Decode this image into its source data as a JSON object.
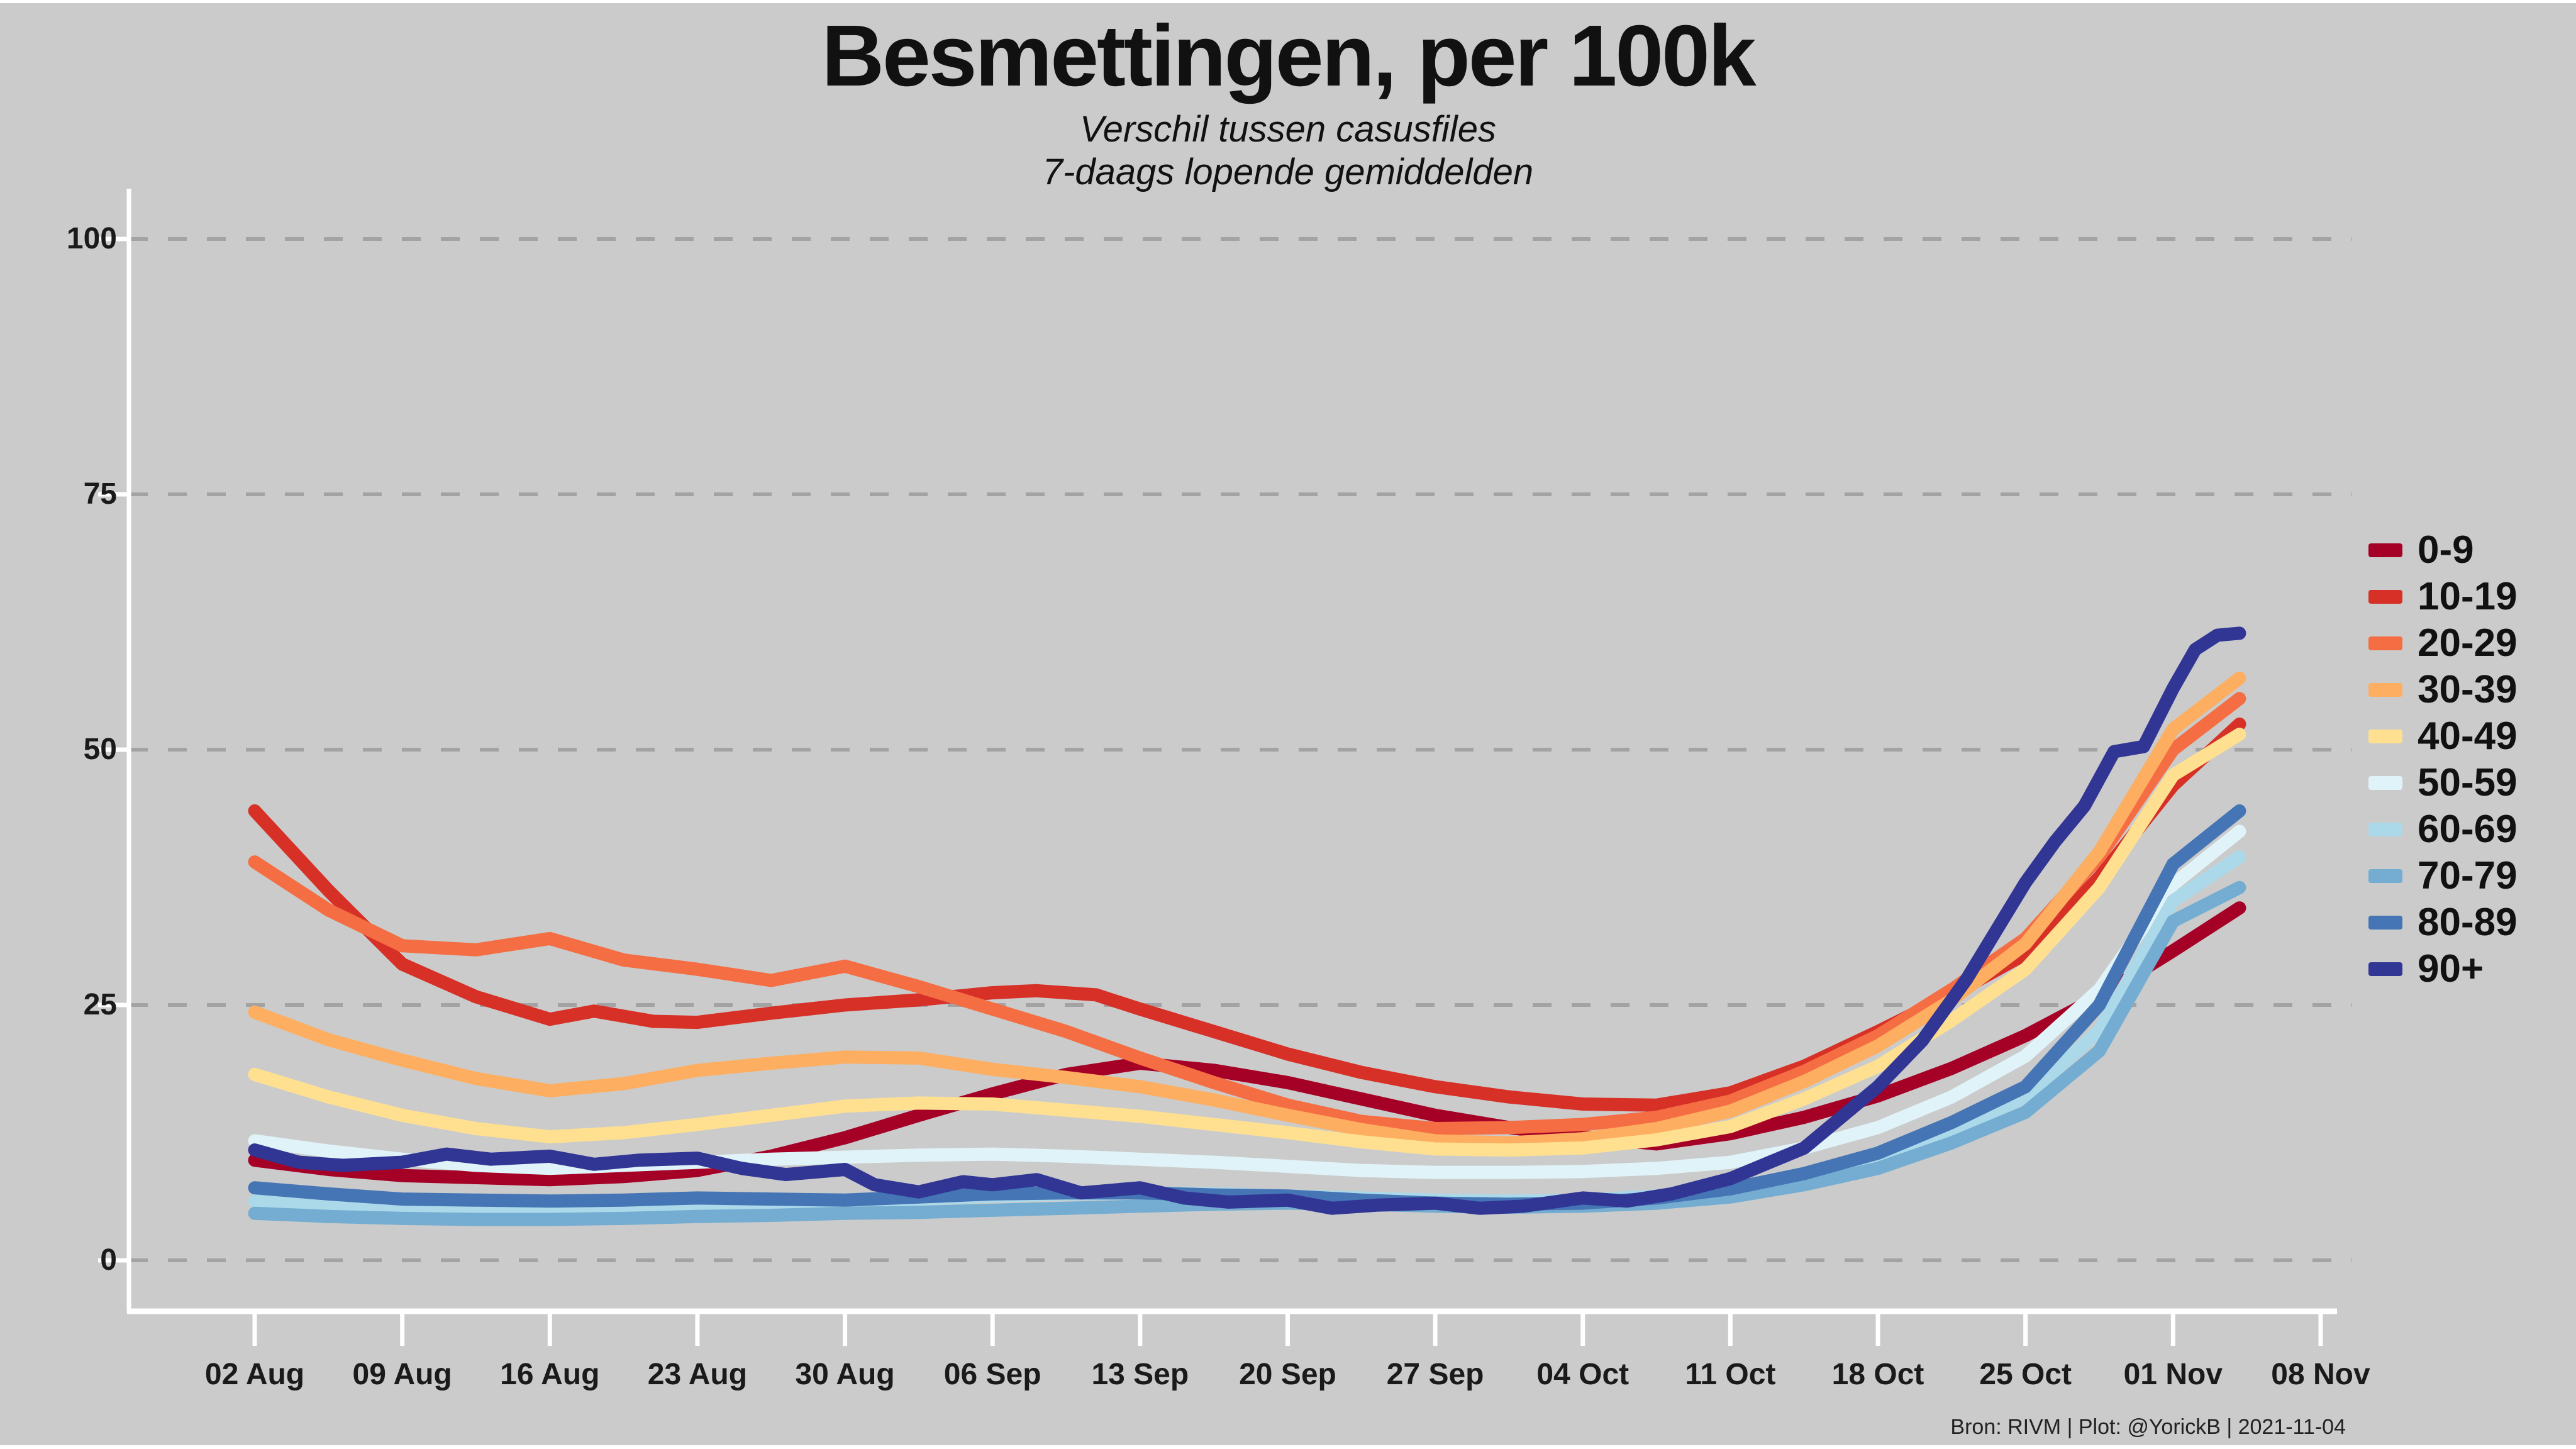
{
  "header": {
    "title": "Besmettingen, per 100k",
    "subtitle1": "Verschil tussen casusfiles",
    "subtitle2": "7-daags lopende gemiddelden"
  },
  "footer": {
    "attribution": "Bron: RIVM | Plot: @YorickB  |  2021-11-04"
  },
  "style": {
    "background": "#cbcbcb",
    "grid_color": "#a3a3a3",
    "axis_color": "#ffffff",
    "text_color": "#1a1a1a",
    "line_width": 21
  },
  "chart_data": {
    "type": "line",
    "title": "Besmettingen, per 100k",
    "subtitle": [
      "Verschil tussen casusfiles",
      "7-daags lopende gemiddelden"
    ],
    "source_note": "Bron: RIVM | Plot: @YorickB  |  2021-11-04",
    "grid": "horizontal-dashed",
    "legend_position": "right",
    "x_unit": "weeks since 02 Aug 2021",
    "x_axis": {
      "tick_labels": [
        "02 Aug",
        "09 Aug",
        "16 Aug",
        "23 Aug",
        "30 Aug",
        "06 Sep",
        "13 Sep",
        "20 Sep",
        "27 Sep",
        "04 Oct",
        "11 Oct",
        "18 Oct",
        "25 Oct",
        "01 Nov",
        "08 Nov"
      ],
      "tick_week_index": [
        0,
        1,
        2,
        3,
        4,
        5,
        6,
        7,
        8,
        9,
        10,
        11,
        12,
        13,
        14
      ]
    },
    "y_axis": {
      "ticks": [
        0,
        25,
        50,
        75,
        100
      ],
      "range": [
        0,
        100
      ],
      "label": ""
    },
    "series": [
      {
        "name": "0-9",
        "color": "#a50026",
        "points": [
          [
            0,
            9.8
          ],
          [
            0.5,
            8.9
          ],
          [
            1,
            8.3
          ],
          [
            1.5,
            8.1
          ],
          [
            2,
            7.9
          ],
          [
            2.5,
            8.2
          ],
          [
            3,
            8.8
          ],
          [
            3.5,
            10.2
          ],
          [
            4,
            12
          ],
          [
            4.5,
            14.2
          ],
          [
            5,
            16.3
          ],
          [
            5.5,
            18.2
          ],
          [
            6,
            19.3
          ],
          [
            6.5,
            18.6
          ],
          [
            7,
            17.4
          ],
          [
            7.5,
            15.8
          ],
          [
            8,
            14.2
          ],
          [
            8.5,
            13
          ],
          [
            9,
            12.1
          ],
          [
            9.5,
            11.4
          ],
          [
            10,
            12.4
          ],
          [
            10.5,
            14
          ],
          [
            11,
            16.1
          ],
          [
            11.5,
            18.8
          ],
          [
            12,
            22
          ],
          [
            12.5,
            25.8
          ],
          [
            13,
            30.3
          ],
          [
            13.45,
            34.5
          ]
        ]
      },
      {
        "name": "10-19",
        "color": "#d73027",
        "points": [
          [
            0,
            44
          ],
          [
            0.5,
            36.2
          ],
          [
            1,
            29
          ],
          [
            1.5,
            25.8
          ],
          [
            2,
            23.6
          ],
          [
            2.3,
            24.4
          ],
          [
            2.7,
            23.4
          ],
          [
            3,
            23.3
          ],
          [
            3.5,
            24.2
          ],
          [
            4,
            25
          ],
          [
            4.5,
            25.5
          ],
          [
            5,
            26.2
          ],
          [
            5.3,
            26.4
          ],
          [
            5.7,
            26
          ],
          [
            6,
            24.6
          ],
          [
            6.5,
            22.4
          ],
          [
            7,
            20.2
          ],
          [
            7.5,
            18.4
          ],
          [
            8,
            17
          ],
          [
            8.5,
            16
          ],
          [
            9,
            15.3
          ],
          [
            9.5,
            15.2
          ],
          [
            10,
            16.4
          ],
          [
            10.5,
            19
          ],
          [
            11,
            22.4
          ],
          [
            11.5,
            26
          ],
          [
            12,
            30
          ],
          [
            12.5,
            37.5
          ],
          [
            13,
            46.5
          ],
          [
            13.45,
            52.5
          ]
        ]
      },
      {
        "name": "20-29",
        "color": "#f46d43",
        "points": [
          [
            0,
            39
          ],
          [
            0.5,
            34.3
          ],
          [
            1,
            30.8
          ],
          [
            1.5,
            30.4
          ],
          [
            2,
            31.5
          ],
          [
            2.5,
            29.4
          ],
          [
            3,
            28.5
          ],
          [
            3.5,
            27.4
          ],
          [
            4,
            28.8
          ],
          [
            4.5,
            26.8
          ],
          [
            5,
            24.6
          ],
          [
            5.5,
            22.4
          ],
          [
            6,
            19.8
          ],
          [
            6.5,
            17.4
          ],
          [
            7,
            15.2
          ],
          [
            7.5,
            13.6
          ],
          [
            8,
            12.9
          ],
          [
            8.5,
            13
          ],
          [
            9,
            13.3
          ],
          [
            9.5,
            14
          ],
          [
            10,
            15.6
          ],
          [
            10.5,
            18.5
          ],
          [
            11,
            22
          ],
          [
            11.5,
            26.5
          ],
          [
            12,
            31.5
          ],
          [
            12.5,
            39.5
          ],
          [
            13,
            50
          ],
          [
            13.45,
            55
          ]
        ]
      },
      {
        "name": "30-39",
        "color": "#fdae61",
        "points": [
          [
            0,
            24.3
          ],
          [
            0.5,
            21.6
          ],
          [
            1,
            19.6
          ],
          [
            1.5,
            17.8
          ],
          [
            2,
            16.6
          ],
          [
            2.5,
            17.3
          ],
          [
            3,
            18.6
          ],
          [
            3.5,
            19.3
          ],
          [
            4,
            19.9
          ],
          [
            4.5,
            19.8
          ],
          [
            5,
            18.7
          ],
          [
            5.5,
            17.9
          ],
          [
            6,
            17
          ],
          [
            6.5,
            15.7
          ],
          [
            7,
            14.2
          ],
          [
            7.5,
            12.8
          ],
          [
            8,
            11.7
          ],
          [
            8.5,
            11.5
          ],
          [
            9,
            11.9
          ],
          [
            9.5,
            12.9
          ],
          [
            10,
            14.6
          ],
          [
            10.5,
            17.5
          ],
          [
            11,
            21
          ],
          [
            11.5,
            25.5
          ],
          [
            12,
            31
          ],
          [
            12.5,
            40
          ],
          [
            13,
            52
          ],
          [
            13.45,
            57
          ]
        ]
      },
      {
        "name": "40-49",
        "color": "#fee090",
        "points": [
          [
            0,
            18.2
          ],
          [
            0.5,
            16
          ],
          [
            1,
            14.2
          ],
          [
            1.5,
            12.9
          ],
          [
            2,
            12.1
          ],
          [
            2.5,
            12.5
          ],
          [
            3,
            13.3
          ],
          [
            3.5,
            14.2
          ],
          [
            4,
            15.1
          ],
          [
            4.5,
            15.4
          ],
          [
            5,
            15.3
          ],
          [
            5.5,
            14.7
          ],
          [
            6,
            14.1
          ],
          [
            6.5,
            13.3
          ],
          [
            7,
            12.5
          ],
          [
            7.5,
            11.6
          ],
          [
            8,
            10.9
          ],
          [
            8.5,
            10.8
          ],
          [
            9,
            11
          ],
          [
            9.5,
            11.8
          ],
          [
            10,
            13.1
          ],
          [
            10.5,
            15.8
          ],
          [
            11,
            19
          ],
          [
            11.5,
            23.5
          ],
          [
            12,
            28.5
          ],
          [
            12.5,
            36.5
          ],
          [
            13,
            47.5
          ],
          [
            13.45,
            51.5
          ]
        ]
      },
      {
        "name": "50-59",
        "color": "#e0f3f8",
        "points": [
          [
            0,
            11.7
          ],
          [
            0.5,
            10.7
          ],
          [
            1,
            9.9
          ],
          [
            1.5,
            9.3
          ],
          [
            2,
            9
          ],
          [
            2.5,
            9.3
          ],
          [
            3,
            9.6
          ],
          [
            3.5,
            9.9
          ],
          [
            4,
            10.1
          ],
          [
            4.5,
            10.3
          ],
          [
            5,
            10.4
          ],
          [
            5.5,
            10.2
          ],
          [
            6,
            9.9
          ],
          [
            6.5,
            9.6
          ],
          [
            7,
            9.2
          ],
          [
            7.5,
            8.8
          ],
          [
            8,
            8.6
          ],
          [
            8.5,
            8.6
          ],
          [
            9,
            8.7
          ],
          [
            9.5,
            9
          ],
          [
            10,
            9.6
          ],
          [
            10.5,
            11
          ],
          [
            11,
            13
          ],
          [
            11.5,
            16
          ],
          [
            12,
            20
          ],
          [
            12.5,
            26.5
          ],
          [
            13,
            36.8
          ],
          [
            13.45,
            42
          ]
        ]
      },
      {
        "name": "60-69",
        "color": "#abd9e9",
        "points": [
          [
            0,
            5.8
          ],
          [
            0.5,
            5.4
          ],
          [
            1,
            5.1
          ],
          [
            1.5,
            5
          ],
          [
            2,
            4.9
          ],
          [
            2.5,
            5.1
          ],
          [
            3,
            5.3
          ],
          [
            3.5,
            5.5
          ],
          [
            4,
            5.7
          ],
          [
            4.5,
            6
          ],
          [
            5,
            6.3
          ],
          [
            5.5,
            6.5
          ],
          [
            6,
            6.6
          ],
          [
            6.5,
            6.5
          ],
          [
            7,
            6.3
          ],
          [
            7.5,
            6.1
          ],
          [
            8,
            5.9
          ],
          [
            8.5,
            5.8
          ],
          [
            9,
            5.9
          ],
          [
            9.5,
            6.3
          ],
          [
            10,
            7
          ],
          [
            10.5,
            8.2
          ],
          [
            11,
            10
          ],
          [
            11.5,
            12.7
          ],
          [
            12,
            16
          ],
          [
            12.5,
            22.5
          ],
          [
            13,
            35.2
          ],
          [
            13.45,
            39.5
          ]
        ]
      },
      {
        "name": "70-79",
        "color": "#74add1",
        "points": [
          [
            0,
            4.6
          ],
          [
            0.5,
            4.3
          ],
          [
            1,
            4.1
          ],
          [
            1.5,
            4
          ],
          [
            2,
            4
          ],
          [
            2.5,
            4.1
          ],
          [
            3,
            4.3
          ],
          [
            3.5,
            4.4
          ],
          [
            4,
            4.6
          ],
          [
            4.5,
            4.7
          ],
          [
            5,
            4.9
          ],
          [
            5.5,
            5.1
          ],
          [
            6,
            5.3
          ],
          [
            6.5,
            5.5
          ],
          [
            7,
            5.6
          ],
          [
            7.5,
            5.5
          ],
          [
            8,
            5.3
          ],
          [
            8.5,
            5.2
          ],
          [
            9,
            5.3
          ],
          [
            9.5,
            5.6
          ],
          [
            10,
            6.2
          ],
          [
            10.5,
            7.4
          ],
          [
            11,
            9
          ],
          [
            11.5,
            11.5
          ],
          [
            12,
            14.5
          ],
          [
            12.5,
            20.5
          ],
          [
            13,
            33.2
          ],
          [
            13.45,
            36.5
          ]
        ]
      },
      {
        "name": "80-89",
        "color": "#4575b4",
        "points": [
          [
            0,
            7.1
          ],
          [
            0.5,
            6.5
          ],
          [
            1,
            6
          ],
          [
            1.5,
            5.9
          ],
          [
            2,
            5.8
          ],
          [
            2.5,
            5.9
          ],
          [
            3,
            6.1
          ],
          [
            3.5,
            6
          ],
          [
            4,
            5.9
          ],
          [
            4.5,
            6.2
          ],
          [
            5,
            6.5
          ],
          [
            5.5,
            6.6
          ],
          [
            6,
            6.6
          ],
          [
            6.5,
            6.4
          ],
          [
            7,
            6.3
          ],
          [
            7.5,
            5.9
          ],
          [
            8,
            5.6
          ],
          [
            8.5,
            5.5
          ],
          [
            9,
            5.6
          ],
          [
            9.5,
            6.1
          ],
          [
            10,
            7
          ],
          [
            10.5,
            8.5
          ],
          [
            11,
            10.5
          ],
          [
            11.5,
            13.5
          ],
          [
            12,
            17
          ],
          [
            12.5,
            25
          ],
          [
            13,
            38.8
          ],
          [
            13.45,
            44
          ]
        ]
      },
      {
        "name": "90+",
        "color": "#313695",
        "points": [
          [
            0,
            10.8
          ],
          [
            0.3,
            9.6
          ],
          [
            0.6,
            9.3
          ],
          [
            1,
            9.6
          ],
          [
            1.3,
            10.4
          ],
          [
            1.6,
            9.9
          ],
          [
            2,
            10.2
          ],
          [
            2.3,
            9.4
          ],
          [
            2.6,
            9.8
          ],
          [
            3,
            10
          ],
          [
            3.3,
            9
          ],
          [
            3.6,
            8.4
          ],
          [
            4,
            8.9
          ],
          [
            4.2,
            7.4
          ],
          [
            4.5,
            6.7
          ],
          [
            4.8,
            7.7
          ],
          [
            5,
            7.4
          ],
          [
            5.3,
            7.9
          ],
          [
            5.6,
            6.6
          ],
          [
            6,
            7.1
          ],
          [
            6.3,
            6.1
          ],
          [
            6.6,
            5.7
          ],
          [
            7,
            5.9
          ],
          [
            7.3,
            5.1
          ],
          [
            7.6,
            5.4
          ],
          [
            8,
            5.6
          ],
          [
            8.3,
            5.1
          ],
          [
            8.6,
            5.3
          ],
          [
            9,
            6.1
          ],
          [
            9.3,
            5.8
          ],
          [
            9.6,
            6.5
          ],
          [
            10,
            8
          ],
          [
            10.5,
            11
          ],
          [
            11,
            17
          ],
          [
            11.3,
            21.5
          ],
          [
            11.6,
            27.5
          ],
          [
            12,
            37
          ],
          [
            12.2,
            41
          ],
          [
            12.4,
            44.5
          ],
          [
            12.6,
            49.8
          ],
          [
            12.8,
            50.3
          ],
          [
            13,
            56
          ],
          [
            13.15,
            59.8
          ],
          [
            13.3,
            61.2
          ],
          [
            13.45,
            61.4
          ]
        ]
      }
    ]
  }
}
